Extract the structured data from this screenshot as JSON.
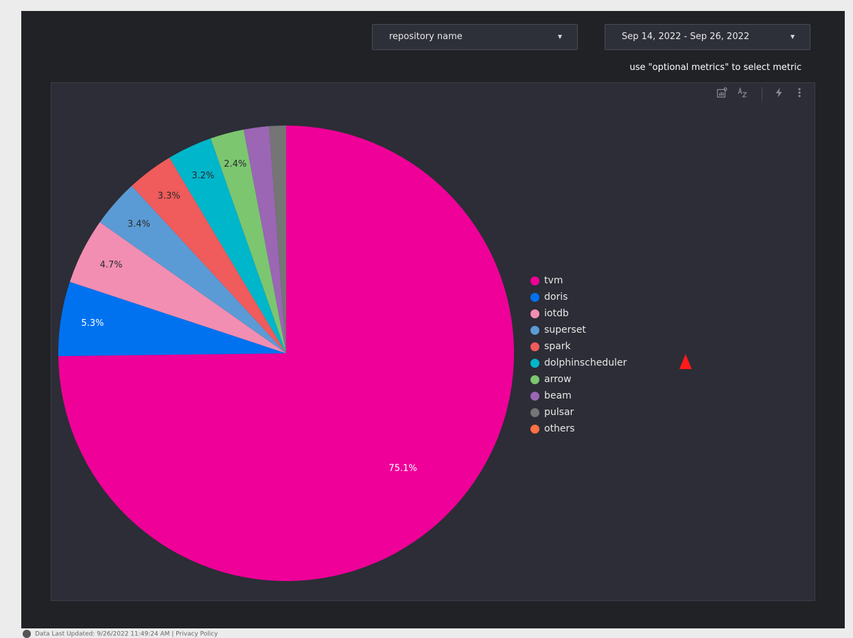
{
  "controls": {
    "repository": {
      "label": "repository name",
      "icon": "dropdown-caret"
    },
    "date_range": {
      "label": "Sep 14, 2022 - Sep 26, 2022",
      "icon": "dropdown-caret"
    }
  },
  "hint_text": "use \"optional metrics\" to select metric",
  "chart_toolbar": {
    "icons": [
      "explore-chart-icon",
      "sort-icon",
      "bolt-icon",
      "more-vert-icon"
    ]
  },
  "chart_data": {
    "type": "pie",
    "title": "",
    "slices": [
      {
        "name": "tvm",
        "value": 75.1,
        "label": "75.1%",
        "color": "#ee0099"
      },
      {
        "name": "doris",
        "value": 5.3,
        "label": "5.3%",
        "color": "#0072f0"
      },
      {
        "name": "iotdb",
        "value": 4.7,
        "label": "4.7%",
        "color": "#f28eb1"
      },
      {
        "name": "superset",
        "value": 3.4,
        "label": "3.4%",
        "color": "#5b9bd5"
      },
      {
        "name": "spark",
        "value": 3.3,
        "label": "3.3%",
        "color": "#f05b5b"
      },
      {
        "name": "dolphinscheduler",
        "value": 3.2,
        "label": "3.2%",
        "color": "#00b6cb"
      },
      {
        "name": "arrow",
        "value": 2.4,
        "label": "2.4%",
        "color": "#7cc670"
      },
      {
        "name": "beam",
        "value": 1.8,
        "label": "",
        "color": "#9b66b4"
      },
      {
        "name": "pulsar",
        "value": 1.2,
        "label": "",
        "color": "#757575"
      },
      {
        "name": "others",
        "value": 0,
        "label": "",
        "color": "#ff7043"
      }
    ],
    "legend_position": "right"
  },
  "footer": {
    "updated_text": "Data Last Updated: 9/26/2022 11:49:24 AM",
    "separator": "|",
    "privacy_link": "Privacy Policy"
  }
}
